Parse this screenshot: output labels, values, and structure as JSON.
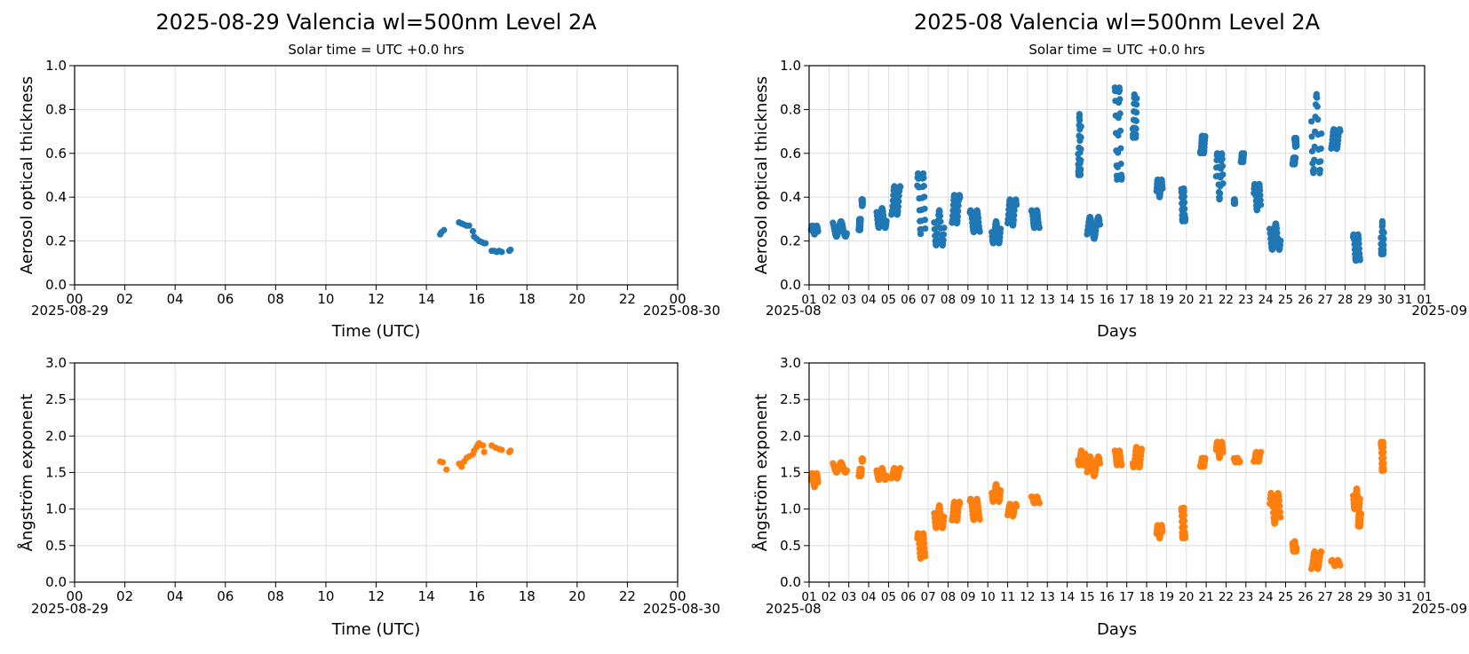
{
  "colors": {
    "aod": "#1f77b4",
    "angstrom": "#ff7f0e",
    "grid": "#dddddd"
  },
  "chart_data": [
    {
      "type": "scatter",
      "title": "2025-08-29  Valencia  wl=500nm  Level 2A",
      "subtitle": "Solar time = UTC +0.0 hrs",
      "xlabel": "",
      "ylabel": "Aerosol optical thickness",
      "xlim": [
        0,
        24
      ],
      "ylim": [
        0,
        1
      ],
      "grid": true,
      "x_ticks": [
        "00",
        "02",
        "04",
        "06",
        "08",
        "10",
        "12",
        "14",
        "16",
        "18",
        "20",
        "22",
        "00"
      ],
      "y_ticks": [
        "0.0",
        "0.2",
        "0.4",
        "0.6",
        "0.8",
        "1.0"
      ],
      "x_offset_left": "2025-08-29",
      "x_offset_right": "2025-08-30",
      "series": [
        {
          "color": "aod",
          "points": [
            [
              14.55,
              0.23
            ],
            [
              14.6,
              0.24
            ],
            [
              14.7,
              0.25
            ],
            [
              15.3,
              0.285
            ],
            [
              15.4,
              0.28
            ],
            [
              15.5,
              0.275
            ],
            [
              15.6,
              0.27
            ],
            [
              15.7,
              0.27
            ],
            [
              15.85,
              0.245
            ],
            [
              15.9,
              0.22
            ],
            [
              16.0,
              0.21
            ],
            [
              16.1,
              0.2
            ],
            [
              16.2,
              0.195
            ],
            [
              16.3,
              0.19
            ],
            [
              16.35,
              0.19
            ],
            [
              16.6,
              0.155
            ],
            [
              16.7,
              0.155
            ],
            [
              16.8,
              0.15
            ],
            [
              16.9,
              0.155
            ],
            [
              17.0,
              0.15
            ],
            [
              17.3,
              0.155
            ],
            [
              17.35,
              0.16
            ]
          ]
        }
      ]
    },
    {
      "type": "scatter",
      "title": "2025-08  Valencia  wl=500nm  Level 2A",
      "subtitle": "Solar time = UTC +0.0 hrs",
      "xlabel": "Days",
      "ylabel": "Aerosol optical thickness",
      "xlim": [
        1,
        32
      ],
      "ylim": [
        0,
        1
      ],
      "grid": true,
      "x_ticks": [
        "01",
        "02",
        "03",
        "04",
        "05",
        "06",
        "07",
        "08",
        "09",
        "10",
        "11",
        "12",
        "13",
        "14",
        "15",
        "16",
        "17",
        "18",
        "19",
        "20",
        "21",
        "22",
        "23",
        "24",
        "25",
        "26",
        "27",
        "28",
        "29",
        "30",
        "31",
        "01"
      ],
      "y_ticks": [
        "0.0",
        "0.2",
        "0.4",
        "0.6",
        "0.8",
        "1.0"
      ],
      "x_offset_left": "2025-08",
      "x_offset_right": "2025-09",
      "clusters": [
        [
          1.1,
          1.45,
          0.23,
          0.27
        ],
        [
          2.2,
          2.9,
          0.22,
          0.29
        ],
        [
          3.5,
          3.6,
          0.25,
          0.3
        ],
        [
          3.65,
          3.7,
          0.36,
          0.39
        ],
        [
          4.4,
          4.9,
          0.26,
          0.35
        ],
        [
          5.15,
          5.6,
          0.32,
          0.45
        ],
        [
          6.45,
          6.85,
          0.23,
          0.51
        ],
        [
          7.3,
          7.8,
          0.18,
          0.34
        ],
        [
          8.2,
          8.6,
          0.28,
          0.41
        ],
        [
          9.1,
          9.6,
          0.24,
          0.34
        ],
        [
          10.2,
          10.65,
          0.19,
          0.29
        ],
        [
          11.0,
          11.45,
          0.27,
          0.39
        ],
        [
          12.2,
          12.6,
          0.26,
          0.34
        ],
        [
          14.55,
          14.7,
          0.5,
          0.78
        ],
        [
          15.0,
          15.65,
          0.21,
          0.31
        ],
        [
          16.4,
          16.75,
          0.48,
          0.9
        ],
        [
          17.3,
          17.5,
          0.67,
          0.87
        ],
        [
          18.5,
          18.8,
          0.4,
          0.48
        ],
        [
          19.75,
          19.95,
          0.29,
          0.44
        ],
        [
          20.7,
          20.95,
          0.6,
          0.68
        ],
        [
          21.5,
          21.85,
          0.39,
          0.6
        ],
        [
          22.4,
          22.45,
          0.37,
          0.39
        ],
        [
          22.75,
          22.9,
          0.56,
          0.6
        ],
        [
          23.4,
          23.75,
          0.34,
          0.46
        ],
        [
          24.2,
          24.75,
          0.16,
          0.28
        ],
        [
          25.35,
          25.5,
          0.55,
          0.58
        ],
        [
          25.45,
          25.55,
          0.63,
          0.67
        ],
        [
          26.3,
          26.8,
          0.51,
          0.87
        ],
        [
          27.3,
          27.75,
          0.62,
          0.71
        ],
        [
          28.4,
          28.75,
          0.11,
          0.23
        ],
        [
          29.8,
          29.95,
          0.14,
          0.29
        ]
      ]
    },
    {
      "type": "scatter",
      "title": "",
      "subtitle": "",
      "xlabel": "Time (UTC)",
      "ylabel": "Ångström exponent",
      "xlim": [
        0,
        24
      ],
      "ylim": [
        0,
        3
      ],
      "grid": true,
      "x_ticks": [
        "00",
        "02",
        "04",
        "06",
        "08",
        "10",
        "12",
        "14",
        "16",
        "18",
        "20",
        "22",
        "00"
      ],
      "y_ticks": [
        "0.0",
        "0.5",
        "1.0",
        "1.5",
        "2.0",
        "2.5",
        "3.0"
      ],
      "x_offset_left": "2025-08-29",
      "x_offset_right": "2025-08-30",
      "series": [
        {
          "color": "angstrom",
          "points": [
            [
              14.55,
              1.65
            ],
            [
              14.65,
              1.64
            ],
            [
              14.8,
              1.54
            ],
            [
              15.3,
              1.62
            ],
            [
              15.4,
              1.58
            ],
            [
              15.5,
              1.65
            ],
            [
              15.6,
              1.7
            ],
            [
              15.7,
              1.72
            ],
            [
              15.85,
              1.75
            ],
            [
              15.9,
              1.8
            ],
            [
              16.0,
              1.85
            ],
            [
              16.05,
              1.88
            ],
            [
              16.1,
              1.9
            ],
            [
              16.15,
              1.88
            ],
            [
              16.25,
              1.87
            ],
            [
              16.3,
              1.78
            ],
            [
              16.6,
              1.87
            ],
            [
              16.75,
              1.84
            ],
            [
              16.9,
              1.82
            ],
            [
              17.0,
              1.81
            ],
            [
              17.3,
              1.78
            ],
            [
              17.35,
              1.8
            ]
          ]
        }
      ]
    },
    {
      "type": "scatter",
      "title": "",
      "subtitle": "",
      "xlabel": "Days",
      "ylabel": "Ångström exponent",
      "xlim": [
        1,
        32
      ],
      "ylim": [
        0,
        3
      ],
      "grid": true,
      "x_ticks": [
        "01",
        "02",
        "03",
        "04",
        "05",
        "06",
        "07",
        "08",
        "09",
        "10",
        "11",
        "12",
        "13",
        "14",
        "15",
        "16",
        "17",
        "18",
        "19",
        "20",
        "21",
        "22",
        "23",
        "24",
        "25",
        "26",
        "27",
        "28",
        "29",
        "30",
        "31",
        "01"
      ],
      "y_ticks": [
        "0.0",
        "0.5",
        "1.0",
        "1.5",
        "2.0",
        "2.5",
        "3.0"
      ],
      "x_offset_left": "2025-08",
      "x_offset_right": "2025-09",
      "clusters": [
        [
          1.1,
          1.45,
          1.3,
          1.49
        ],
        [
          2.2,
          2.9,
          1.5,
          1.64
        ],
        [
          3.5,
          3.65,
          1.45,
          1.55
        ],
        [
          3.65,
          3.7,
          1.65,
          1.69
        ],
        [
          4.4,
          4.9,
          1.4,
          1.56
        ],
        [
          5.15,
          5.6,
          1.42,
          1.56
        ],
        [
          6.45,
          6.85,
          0.32,
          0.67
        ],
        [
          7.3,
          7.8,
          0.74,
          1.05
        ],
        [
          8.2,
          8.6,
          0.84,
          1.1
        ],
        [
          9.1,
          9.6,
          0.85,
          1.14
        ],
        [
          10.2,
          10.65,
          1.1,
          1.34
        ],
        [
          11.0,
          11.45,
          0.9,
          1.07
        ],
        [
          12.2,
          12.6,
          1.08,
          1.17
        ],
        [
          14.55,
          14.9,
          1.6,
          1.8
        ],
        [
          15.0,
          15.65,
          1.45,
          1.72
        ],
        [
          16.4,
          16.75,
          1.6,
          1.8
        ],
        [
          17.3,
          17.75,
          1.57,
          1.85
        ],
        [
          18.5,
          18.8,
          0.6,
          0.78
        ],
        [
          19.75,
          19.95,
          0.6,
          1.02
        ],
        [
          20.7,
          20.95,
          1.58,
          1.7
        ],
        [
          21.5,
          21.85,
          1.7,
          1.92
        ],
        [
          22.4,
          22.7,
          1.64,
          1.7
        ],
        [
          23.4,
          23.75,
          1.65,
          1.78
        ],
        [
          24.2,
          24.75,
          0.8,
          1.22
        ],
        [
          25.35,
          25.55,
          0.42,
          0.56
        ],
        [
          26.3,
          26.8,
          0.18,
          0.42
        ],
        [
          27.3,
          27.75,
          0.22,
          0.3
        ],
        [
          28.4,
          28.75,
          1.0,
          1.28
        ],
        [
          28.65,
          28.8,
          0.76,
          0.94
        ],
        [
          29.8,
          29.95,
          1.52,
          1.92
        ]
      ]
    }
  ]
}
